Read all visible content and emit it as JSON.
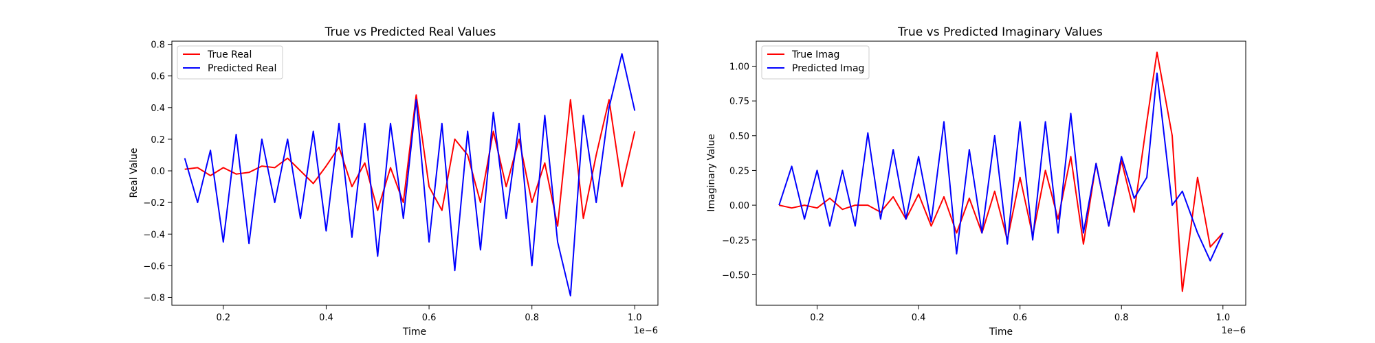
{
  "chart_data": [
    {
      "type": "line",
      "title": "True vs Predicted Real Values",
      "xlabel": "Time",
      "ylabel": "Real Value",
      "x_offset_label": "1e−6",
      "xlim": [
        0.1,
        1.045
      ],
      "ylim": [
        -0.85,
        0.82
      ],
      "xticks": [
        0.2,
        0.4,
        0.6,
        0.8,
        1.0
      ],
      "xtick_labels": [
        "0.2",
        "0.4",
        "0.6",
        "0.8",
        "1.0"
      ],
      "yticks": [
        -0.8,
        -0.6,
        -0.4,
        -0.2,
        0.0,
        0.2,
        0.4,
        0.6,
        0.8
      ],
      "ytick_labels": [
        "−0.8",
        "−0.6",
        "−0.4",
        "−0.2",
        "0.0",
        "0.2",
        "0.4",
        "0.6",
        "0.8"
      ],
      "grid": false,
      "legend": "top-left",
      "x": [
        0.125,
        0.15,
        0.175,
        0.2,
        0.225,
        0.25,
        0.275,
        0.3,
        0.325,
        0.35,
        0.375,
        0.4,
        0.425,
        0.45,
        0.475,
        0.5,
        0.525,
        0.55,
        0.575,
        0.6,
        0.625,
        0.65,
        0.675,
        0.7,
        0.725,
        0.75,
        0.775,
        0.8,
        0.825,
        0.85,
        0.875,
        0.9,
        0.925,
        0.95,
        0.975,
        1.0
      ],
      "series": [
        {
          "name": "True Real",
          "color": "#ff0000",
          "values": [
            0.01,
            0.02,
            -0.03,
            0.02,
            -0.02,
            -0.01,
            0.03,
            0.02,
            0.08,
            0.0,
            -0.08,
            0.03,
            0.15,
            -0.1,
            0.05,
            -0.25,
            0.02,
            -0.2,
            0.48,
            -0.1,
            -0.25,
            0.2,
            0.1,
            -0.2,
            0.25,
            -0.1,
            0.2,
            -0.2,
            0.05,
            -0.35,
            0.45,
            -0.3,
            0.1,
            0.45,
            -0.1,
            0.25
          ]
        },
        {
          "name": "Predicted Real",
          "color": "#0000ff",
          "values": [
            0.08,
            -0.2,
            0.13,
            -0.45,
            0.23,
            -0.46,
            0.2,
            -0.2,
            0.2,
            -0.3,
            0.25,
            -0.38,
            0.3,
            -0.42,
            0.3,
            -0.54,
            0.3,
            -0.3,
            0.45,
            -0.45,
            0.3,
            -0.63,
            0.25,
            -0.5,
            0.37,
            -0.3,
            0.3,
            -0.6,
            0.35,
            -0.45,
            -0.79,
            0.35,
            -0.2,
            0.4,
            0.74,
            0.38
          ]
        }
      ]
    },
    {
      "type": "line",
      "title": "True vs Predicted Imaginary Values",
      "xlabel": "Time",
      "ylabel": "Imaginary Value",
      "x_offset_label": "1e−6",
      "xlim": [
        0.08,
        1.045
      ],
      "ylim": [
        -0.72,
        1.18
      ],
      "xticks": [
        0.2,
        0.4,
        0.6,
        0.8,
        1.0
      ],
      "xtick_labels": [
        "0.2",
        "0.4",
        "0.6",
        "0.8",
        "1.0"
      ],
      "yticks": [
        -0.5,
        -0.25,
        0.0,
        0.25,
        0.5,
        0.75,
        1.0
      ],
      "ytick_labels": [
        "−0.50",
        "−0.25",
        "0.00",
        "0.25",
        "0.50",
        "0.75",
        "1.00"
      ],
      "grid": false,
      "legend": "top-left",
      "x": [
        0.125,
        0.15,
        0.175,
        0.2,
        0.225,
        0.25,
        0.275,
        0.3,
        0.325,
        0.35,
        0.375,
        0.4,
        0.425,
        0.45,
        0.475,
        0.5,
        0.525,
        0.55,
        0.575,
        0.6,
        0.625,
        0.65,
        0.675,
        0.7,
        0.725,
        0.75,
        0.775,
        0.8,
        0.825,
        0.85,
        0.87,
        0.9,
        0.92,
        0.95,
        0.975,
        1.0
      ],
      "series": [
        {
          "name": "True Imag",
          "color": "#ff0000",
          "values": [
            0.0,
            -0.02,
            0.0,
            -0.02,
            0.05,
            -0.03,
            0.0,
            0.0,
            -0.05,
            0.06,
            -0.1,
            0.08,
            -0.15,
            0.06,
            -0.2,
            0.05,
            -0.2,
            0.1,
            -0.25,
            0.2,
            -0.22,
            0.25,
            -0.1,
            0.35,
            -0.28,
            0.3,
            -0.15,
            0.32,
            -0.05,
            0.6,
            1.1,
            0.5,
            -0.62,
            0.2,
            -0.3,
            -0.2
          ]
        },
        {
          "name": "Predicted Imag",
          "color": "#0000ff",
          "values": [
            0.0,
            0.28,
            -0.1,
            0.25,
            -0.15,
            0.25,
            -0.15,
            0.52,
            -0.1,
            0.4,
            -0.1,
            0.35,
            -0.12,
            0.6,
            -0.35,
            0.4,
            -0.2,
            0.5,
            -0.28,
            0.6,
            -0.25,
            0.6,
            -0.2,
            0.66,
            -0.2,
            0.3,
            -0.15,
            0.35,
            0.05,
            0.2,
            0.95,
            0.0,
            0.1,
            -0.2,
            -0.4,
            -0.2
          ]
        }
      ]
    }
  ]
}
